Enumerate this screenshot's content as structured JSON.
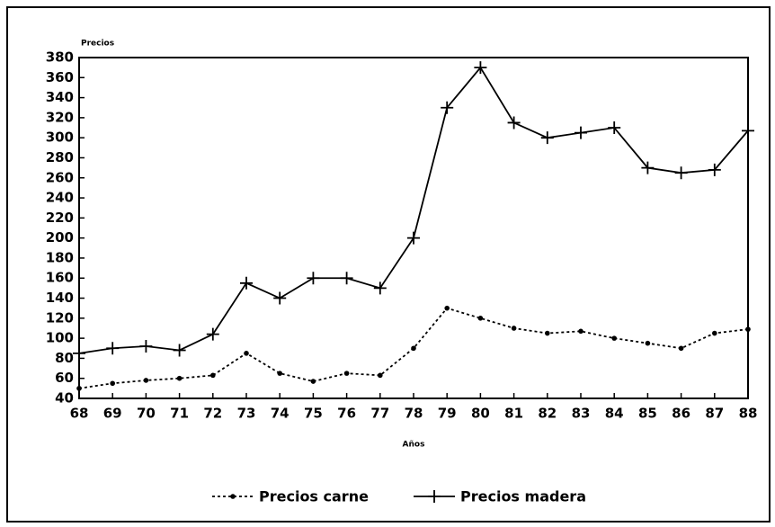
{
  "chart_data": {
    "type": "line",
    "y_label": "Precios",
    "x_label": "Años",
    "x": [
      68,
      69,
      70,
      71,
      72,
      73,
      74,
      75,
      76,
      77,
      78,
      79,
      80,
      81,
      82,
      83,
      84,
      85,
      86,
      87,
      88
    ],
    "xlim": [
      68,
      88
    ],
    "xticks": [
      68,
      69,
      70,
      71,
      72,
      73,
      74,
      75,
      76,
      77,
      78,
      79,
      80,
      81,
      82,
      83,
      84,
      85,
      86,
      87,
      88
    ],
    "ylim": [
      40,
      380
    ],
    "yticks": [
      40,
      60,
      80,
      100,
      120,
      140,
      160,
      180,
      200,
      220,
      240,
      260,
      280,
      300,
      320,
      340,
      360,
      380
    ],
    "series": [
      {
        "name": "Precios carne",
        "color": "#000000",
        "style": "dotted",
        "marker": "dot",
        "values": [
          50,
          55,
          58,
          60,
          63,
          85,
          65,
          57,
          65,
          63,
          90,
          130,
          120,
          110,
          105,
          107,
          100,
          95,
          90,
          105,
          109
        ]
      },
      {
        "name": "Precios madera",
        "color": "#000000",
        "style": "solid",
        "marker": "plus",
        "values": [
          85,
          90,
          92,
          88,
          104,
          155,
          140,
          160,
          160,
          150,
          200,
          330,
          370,
          315,
          300,
          305,
          310,
          270,
          265,
          268,
          307
        ]
      }
    ]
  }
}
